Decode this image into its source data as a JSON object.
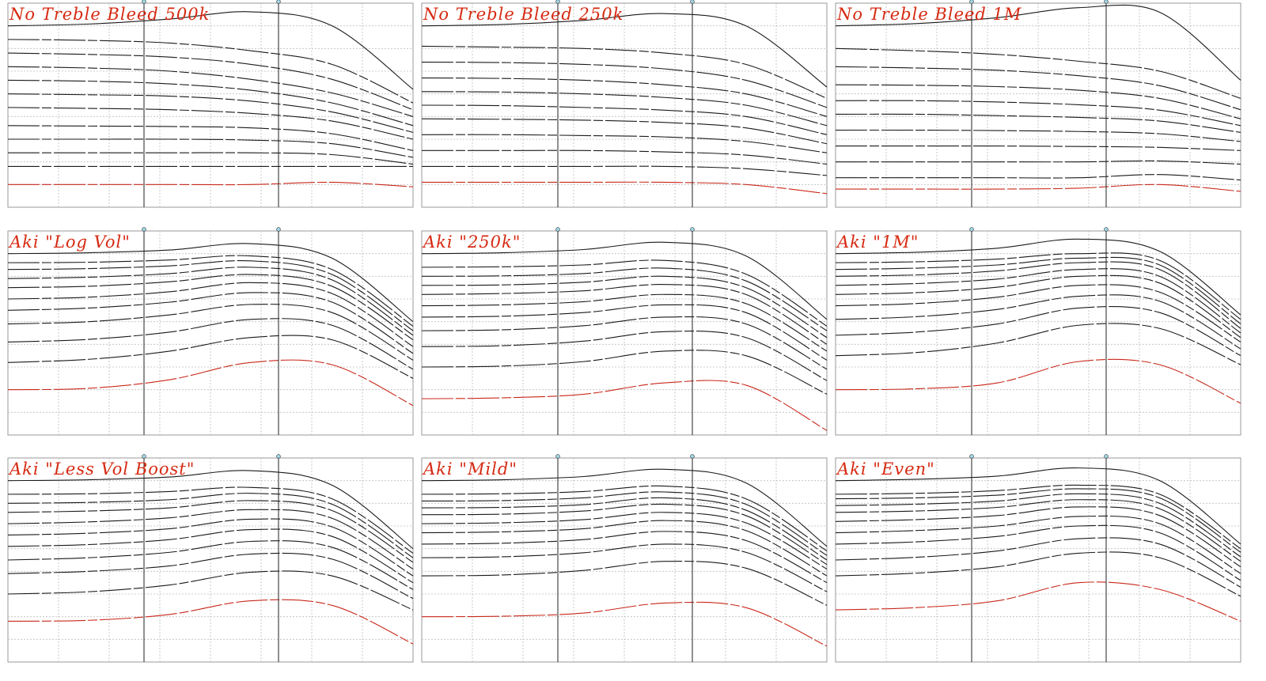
{
  "chart_data": [
    {
      "type": "line",
      "title": "No Treble Bleed 500k",
      "series": [
        {
          "values": [
            0.0,
            0.4,
            1.5,
            3.1,
            0.0,
            -14.0
          ]
        },
        {
          "values": [
            -3.0,
            -3.2,
            -3.8,
            -5.5,
            -8.5,
            -17.0
          ]
        },
        {
          "values": [
            -6.0,
            -6.3,
            -6.9,
            -8.5,
            -11.8,
            -18.5
          ]
        },
        {
          "values": [
            -9.0,
            -9.3,
            -10.0,
            -11.8,
            -14.8,
            -20.0
          ]
        },
        {
          "values": [
            -12.0,
            -12.2,
            -12.8,
            -14.2,
            -17.0,
            -22.0
          ]
        },
        {
          "values": [
            -15.0,
            -15.2,
            -15.5,
            -16.6,
            -19.0,
            -23.5
          ]
        },
        {
          "values": [
            -18.0,
            -18.2,
            -18.5,
            -19.3,
            -21.0,
            -25.0
          ]
        },
        {
          "values": [
            -22.0,
            -22.1,
            -22.2,
            -22.5,
            -23.8,
            -27.5
          ]
        },
        {
          "values": [
            -25.0,
            -25.0,
            -25.0,
            -25.2,
            -26.0,
            -29.0
          ]
        },
        {
          "values": [
            -28.0,
            -28.0,
            -28.0,
            -28.0,
            -28.4,
            -30.5
          ]
        },
        {
          "values": [
            -31.0,
            -31.0,
            -31.0,
            -31.0,
            -31.0,
            -31.0
          ]
        },
        {
          "values": [
            -35.0,
            -35.0,
            -35.0,
            -35.0,
            -34.5,
            -35.5
          ]
        }
      ]
    },
    {
      "type": "line",
      "title": "No Treble Bleed 250k",
      "series": [
        {
          "values": [
            0.0,
            0.3,
            1.2,
            2.7,
            0.0,
            -13.5
          ]
        },
        {
          "values": [
            -4.5,
            -4.7,
            -5.0,
            -6.0,
            -8.5,
            -16.0
          ]
        },
        {
          "values": [
            -8.0,
            -8.1,
            -8.5,
            -9.5,
            -12.0,
            -18.0
          ]
        },
        {
          "values": [
            -11.5,
            -11.6,
            -12.0,
            -13.0,
            -15.0,
            -20.0
          ]
        },
        {
          "values": [
            -14.5,
            -14.6,
            -15.0,
            -15.8,
            -17.5,
            -22.0
          ]
        },
        {
          "values": [
            -17.5,
            -17.6,
            -18.0,
            -18.6,
            -20.0,
            -24.0
          ]
        },
        {
          "values": [
            -20.5,
            -20.6,
            -20.8,
            -21.3,
            -22.5,
            -26.0
          ]
        },
        {
          "values": [
            -24.0,
            -24.0,
            -24.2,
            -24.5,
            -25.5,
            -28.0
          ]
        },
        {
          "values": [
            -27.5,
            -27.5,
            -27.5,
            -27.8,
            -28.5,
            -30.5
          ]
        },
        {
          "values": [
            -31.0,
            -31.0,
            -31.0,
            -31.0,
            -31.5,
            -33.0
          ]
        },
        {
          "values": [
            -34.5,
            -34.5,
            -34.5,
            -34.5,
            -35.0,
            -37.0
          ]
        }
      ]
    },
    {
      "type": "line",
      "title": "No Treble Bleed 1M",
      "series": [
        {
          "values": [
            0.0,
            0.5,
            1.8,
            4.0,
            3.0,
            -12.0
          ]
        },
        {
          "values": [
            -5.0,
            -5.5,
            -6.3,
            -7.8,
            -10.0,
            -16.0
          ]
        },
        {
          "values": [
            -9.0,
            -9.3,
            -9.8,
            -11.0,
            -13.2,
            -18.5
          ]
        },
        {
          "values": [
            -13.0,
            -13.1,
            -13.4,
            -14.2,
            -16.0,
            -20.5
          ]
        },
        {
          "values": [
            -16.5,
            -16.5,
            -16.8,
            -17.4,
            -18.6,
            -22.0
          ]
        },
        {
          "values": [
            -19.5,
            -19.5,
            -19.8,
            -20.2,
            -21.0,
            -23.5
          ]
        },
        {
          "values": [
            -23.0,
            -23.0,
            -23.1,
            -23.3,
            -23.8,
            -25.5
          ]
        },
        {
          "values": [
            -26.5,
            -26.5,
            -26.5,
            -26.6,
            -26.8,
            -27.5
          ]
        },
        {
          "values": [
            -30.0,
            -30.0,
            -30.0,
            -30.0,
            -29.8,
            -30.5
          ]
        },
        {
          "values": [
            -33.5,
            -33.5,
            -33.5,
            -33.5,
            -32.8,
            -34.0
          ]
        },
        {
          "values": [
            -36.0,
            -36.0,
            -36.0,
            -35.8,
            -35.0,
            -36.5
          ]
        }
      ]
    },
    {
      "type": "line",
      "title": "Aki \"Log Vol\"",
      "series": [
        {
          "values": [
            0.0,
            0.2,
            0.8,
            2.2,
            -1.0,
            -15.0
          ]
        },
        {
          "values": [
            -2.0,
            -1.9,
            -1.4,
            -0.5,
            -3.5,
            -16.0
          ]
        },
        {
          "values": [
            -3.5,
            -3.3,
            -2.7,
            -1.6,
            -4.6,
            -17.0
          ]
        },
        {
          "values": [
            -5.5,
            -5.2,
            -4.4,
            -3.0,
            -5.8,
            -18.0
          ]
        },
        {
          "values": [
            -7.5,
            -7.2,
            -6.2,
            -4.6,
            -7.2,
            -19.0
          ]
        },
        {
          "values": [
            -10.0,
            -9.6,
            -8.4,
            -6.4,
            -8.8,
            -20.5
          ]
        },
        {
          "values": [
            -12.5,
            -12.0,
            -10.7,
            -8.6,
            -10.7,
            -22.0
          ]
        },
        {
          "values": [
            -15.5,
            -15.0,
            -13.5,
            -11.2,
            -13.0,
            -23.5
          ]
        },
        {
          "values": [
            -19.5,
            -18.9,
            -17.3,
            -14.5,
            -15.8,
            -25.5
          ]
        },
        {
          "values": [
            -24.0,
            -23.3,
            -21.5,
            -18.5,
            -19.0,
            -27.5
          ]
        },
        {
          "values": [
            -30.0,
            -29.7,
            -27.8,
            -24.0,
            -24.5,
            -33.5
          ]
        }
      ]
    },
    {
      "type": "line",
      "title": "Aki \"250k\"",
      "series": [
        {
          "values": [
            0.0,
            0.2,
            0.9,
            2.5,
            -0.5,
            -14.5
          ]
        },
        {
          "values": [
            -3.0,
            -2.9,
            -2.5,
            -1.5,
            -4.5,
            -16.0
          ]
        },
        {
          "values": [
            -5.0,
            -4.9,
            -4.4,
            -3.2,
            -6.0,
            -17.0
          ]
        },
        {
          "values": [
            -7.0,
            -6.9,
            -6.3,
            -5.0,
            -7.5,
            -18.5
          ]
        },
        {
          "values": [
            -9.0,
            -8.8,
            -8.2,
            -6.8,
            -9.0,
            -20.0
          ]
        },
        {
          "values": [
            -11.5,
            -11.3,
            -10.6,
            -9.0,
            -11.0,
            -21.5
          ]
        },
        {
          "values": [
            -14.0,
            -13.8,
            -13.0,
            -11.3,
            -13.0,
            -23.5
          ]
        },
        {
          "values": [
            -17.0,
            -16.8,
            -15.9,
            -14.0,
            -15.5,
            -25.5
          ]
        },
        {
          "values": [
            -20.5,
            -20.3,
            -19.3,
            -17.2,
            -18.5,
            -28.0
          ]
        },
        {
          "values": [
            -25.0,
            -24.8,
            -23.8,
            -21.5,
            -22.5,
            -31.0
          ]
        },
        {
          "values": [
            -32.0,
            -31.8,
            -31.0,
            -28.5,
            -29.0,
            -39.0
          ]
        }
      ]
    },
    {
      "type": "line",
      "title": "Aki \"1M\"",
      "series": [
        {
          "values": [
            0.0,
            0.3,
            1.2,
            3.2,
            0.5,
            -13.5
          ]
        },
        {
          "values": [
            -2.0,
            -1.8,
            -1.2,
            0.0,
            -1.5,
            -14.5
          ]
        },
        {
          "values": [
            -3.5,
            -3.2,
            -2.5,
            -1.0,
            -2.5,
            -15.5
          ]
        },
        {
          "values": [
            -5.0,
            -4.7,
            -3.8,
            -2.0,
            -3.5,
            -16.5
          ]
        },
        {
          "values": [
            -7.0,
            -6.6,
            -5.6,
            -3.5,
            -5.0,
            -17.5
          ]
        },
        {
          "values": [
            -9.0,
            -8.6,
            -7.4,
            -5.0,
            -6.5,
            -18.5
          ]
        },
        {
          "values": [
            -11.5,
            -11.0,
            -9.6,
            -7.0,
            -8.5,
            -19.5
          ]
        },
        {
          "values": [
            -14.5,
            -13.9,
            -12.3,
            -9.4,
            -10.5,
            -21.0
          ]
        },
        {
          "values": [
            -18.0,
            -17.3,
            -15.5,
            -12.0,
            -13.0,
            -22.5
          ]
        },
        {
          "values": [
            -22.5,
            -21.8,
            -19.7,
            -15.8,
            -16.5,
            -24.5
          ]
        },
        {
          "values": [
            -30.0,
            -29.8,
            -28.5,
            -23.8,
            -24.5,
            -33.0
          ]
        }
      ]
    },
    {
      "type": "line",
      "title": "Aki \"Less Vol Boost\"",
      "series": [
        {
          "values": [
            0.0,
            0.2,
            0.8,
            2.2,
            -1.0,
            -15.0
          ]
        },
        {
          "values": [
            -3.0,
            -2.9,
            -2.4,
            -1.5,
            -4.0,
            -16.0
          ]
        },
        {
          "values": [
            -5.0,
            -4.8,
            -4.2,
            -2.8,
            -5.2,
            -17.0
          ]
        },
        {
          "values": [
            -7.0,
            -6.7,
            -6.0,
            -4.4,
            -6.6,
            -18.0
          ]
        },
        {
          "values": [
            -9.5,
            -9.1,
            -8.2,
            -6.4,
            -8.3,
            -19.5
          ]
        },
        {
          "values": [
            -12.0,
            -11.6,
            -10.6,
            -8.5,
            -10.2,
            -21.0
          ]
        },
        {
          "values": [
            -14.5,
            -14.1,
            -13.0,
            -10.8,
            -12.3,
            -22.5
          ]
        },
        {
          "values": [
            -17.5,
            -17.0,
            -15.8,
            -13.4,
            -14.7,
            -24.0
          ]
        },
        {
          "values": [
            -20.5,
            -20.0,
            -18.8,
            -16.2,
            -17.3,
            -26.0
          ]
        },
        {
          "values": [
            -25.0,
            -24.5,
            -23.0,
            -20.2,
            -21.0,
            -28.5
          ]
        },
        {
          "values": [
            -31.0,
            -30.8,
            -29.5,
            -26.5,
            -27.5,
            -36.0
          ]
        }
      ]
    },
    {
      "type": "line",
      "title": "Aki \"Mild\"",
      "series": [
        {
          "values": [
            0.0,
            0.2,
            0.9,
            2.5,
            -0.5,
            -14.5
          ]
        },
        {
          "values": [
            -3.0,
            -2.9,
            -2.4,
            -1.2,
            -4.0,
            -15.5
          ]
        },
        {
          "values": [
            -4.5,
            -4.4,
            -3.8,
            -2.5,
            -5.2,
            -16.5
          ]
        },
        {
          "values": [
            -6.0,
            -5.9,
            -5.3,
            -3.8,
            -6.5,
            -17.5
          ]
        },
        {
          "values": [
            -7.5,
            -7.4,
            -6.7,
            -5.2,
            -7.7,
            -18.5
          ]
        },
        {
          "values": [
            -9.5,
            -9.3,
            -8.6,
            -7.0,
            -9.3,
            -19.5
          ]
        },
        {
          "values": [
            -11.5,
            -11.3,
            -10.6,
            -8.8,
            -11.0,
            -21.0
          ]
        },
        {
          "values": [
            -14.0,
            -13.8,
            -13.0,
            -11.2,
            -13.2,
            -22.5
          ]
        },
        {
          "values": [
            -17.0,
            -16.8,
            -15.9,
            -14.0,
            -15.8,
            -24.5
          ]
        },
        {
          "values": [
            -21.0,
            -20.8,
            -19.8,
            -17.8,
            -19.3,
            -27.5
          ]
        },
        {
          "values": [
            -30.0,
            -29.9,
            -29.2,
            -27.0,
            -28.0,
            -36.5
          ]
        }
      ]
    },
    {
      "type": "line",
      "title": "Aki \"Even\"",
      "series": [
        {
          "values": [
            0.0,
            0.3,
            1.0,
            2.8,
            0.0,
            -14.0
          ]
        },
        {
          "values": [
            -3.0,
            -2.8,
            -2.2,
            -1.0,
            -3.0,
            -15.0
          ]
        },
        {
          "values": [
            -4.0,
            -3.8,
            -3.2,
            -1.8,
            -3.8,
            -15.8
          ]
        },
        {
          "values": [
            -5.5,
            -5.2,
            -4.5,
            -2.9,
            -5.0,
            -16.8
          ]
        },
        {
          "values": [
            -7.0,
            -6.7,
            -5.9,
            -4.2,
            -6.2,
            -17.8
          ]
        },
        {
          "values": [
            -9.0,
            -8.6,
            -7.7,
            -5.8,
            -7.7,
            -19.0
          ]
        },
        {
          "values": [
            -11.5,
            -11.0,
            -10.0,
            -7.9,
            -9.5,
            -20.5
          ]
        },
        {
          "values": [
            -14.0,
            -13.5,
            -12.3,
            -10.0,
            -11.5,
            -22.0
          ]
        },
        {
          "values": [
            -17.5,
            -16.9,
            -15.5,
            -12.8,
            -14.0,
            -23.5
          ]
        },
        {
          "values": [
            -21.0,
            -20.4,
            -19.0,
            -16.0,
            -17.0,
            -25.5
          ]
        },
        {
          "values": [
            -28.5,
            -28.0,
            -26.5,
            -22.5,
            -24.0,
            -31.0
          ]
        }
      ]
    }
  ]
}
